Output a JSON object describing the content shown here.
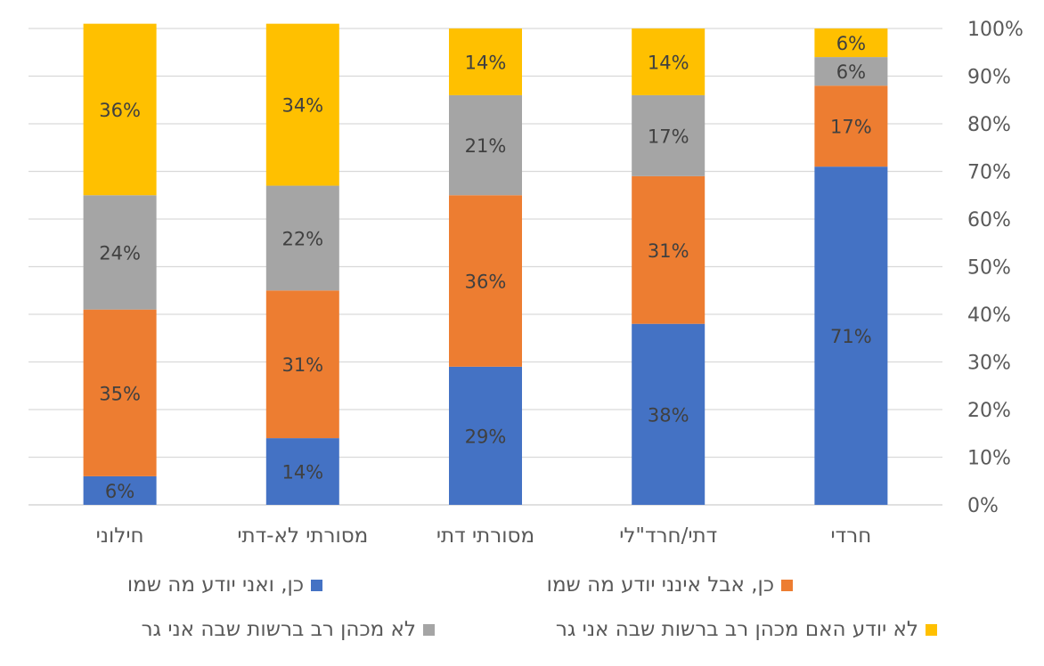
{
  "chart_data": {
    "type": "bar",
    "stacked": true,
    "percent_stacked": true,
    "categories": [
      "חרדי",
      "דתי/חרד\"לי",
      "מסורתי דתי",
      "מסורתי לא-דתי",
      "חילוני"
    ],
    "series": [
      {
        "name": "כן, ואני יודע מה שמו",
        "color": "#4472C4",
        "values": [
          71,
          38,
          29,
          14,
          6
        ]
      },
      {
        "name": "כן, אבל אינני יודע מה שמו",
        "color": "#ED7D31",
        "values": [
          17,
          31,
          36,
          31,
          35
        ]
      },
      {
        "name": "לא מכהן רב ברשות שבה אני גר",
        "color": "#A5A5A5",
        "values": [
          6,
          17,
          21,
          22,
          24
        ]
      },
      {
        "name": "לא יודע האם מכהן רב ברשות שבה אני גר",
        "color": "#FFC000",
        "values": [
          6,
          14,
          14,
          34,
          36
        ]
      }
    ],
    "y_ticks": [
      "0%",
      "10%",
      "20%",
      "30%",
      "40%",
      "50%",
      "60%",
      "70%",
      "80%",
      "90%",
      "100%"
    ],
    "ylim": [
      0,
      100
    ],
    "y_axis_side": "right",
    "grid": true,
    "legend_position": "bottom",
    "data_label_suffix": "%",
    "title": "",
    "xlabel": "",
    "ylabel": ""
  }
}
